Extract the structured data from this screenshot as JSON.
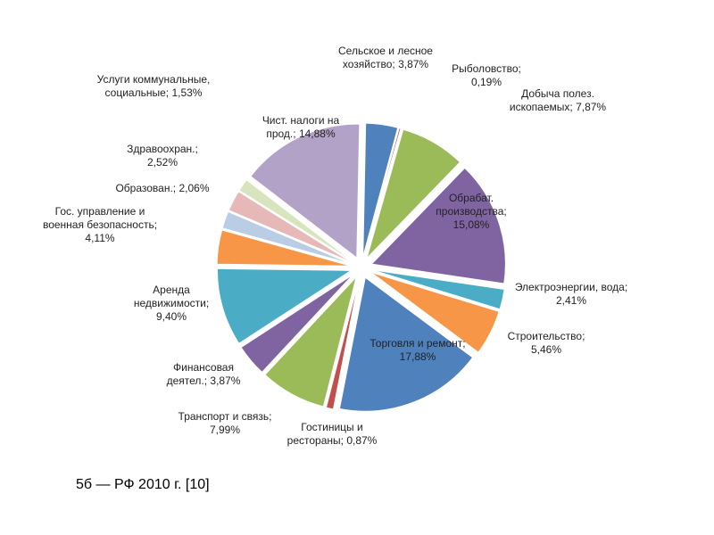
{
  "chart_data": {
    "type": "pie",
    "caption": "5б — РФ 2010 г. [10]",
    "categories": [
      "Сельское и лесное хозяйство;",
      "Рыболовство;",
      "Добыча полез. ископаемых;",
      "Обрабат. производства;",
      "Электроэнергии, вода;",
      "Строительство;",
      "Торговля и ремонт;",
      "Гостиницы и рестораны;",
      "Транспорт и связь;",
      "Финансовая деятел.;",
      "Аренда недвижимости;",
      "Гос. управление и военная безопасность;",
      "Образован.;",
      "Здравоохран.;",
      "Услуги коммунальные, социальные;",
      "Чист. налоги на прод.;"
    ],
    "values": [
      3.87,
      0.19,
      7.87,
      15.08,
      2.41,
      5.46,
      17.88,
      0.87,
      7.99,
      3.87,
      9.4,
      4.11,
      2.06,
      2.52,
      1.53,
      14.88
    ],
    "value_labels": [
      "3,87%",
      "0,19%",
      "7,87%",
      "15,08%",
      "2,41%",
      "5,46%",
      "17,88%",
      "0,87%",
      "7,99%",
      "3,87%",
      "9,40%",
      "4,11%",
      "2,06%",
      "2,52%",
      "1,53%",
      "14,88%"
    ],
    "colors": [
      "#4f81bd",
      "#c0504d",
      "#9bbb59",
      "#8064a2",
      "#4bacc6",
      "#f79646",
      "#4f81bd",
      "#c0504d",
      "#9bbb59",
      "#8064a2",
      "#4bacc6",
      "#f79646",
      "#b9cde5",
      "#e6b9b8",
      "#d7e4bd",
      "#b3a2c7"
    ]
  }
}
